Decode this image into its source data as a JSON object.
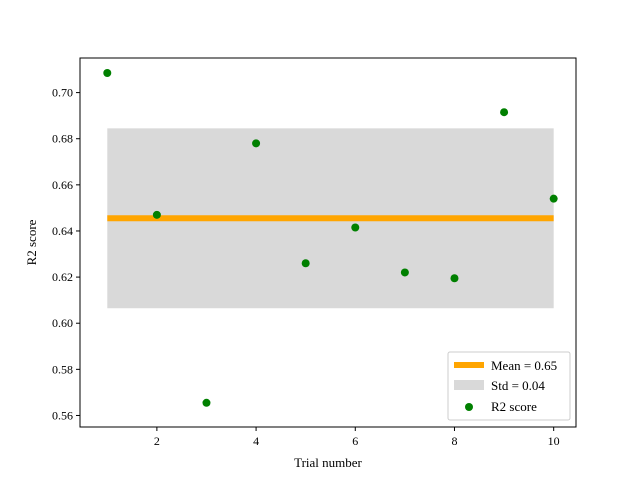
{
  "chart_data": {
    "type": "scatter",
    "xlabel": "Trial number",
    "ylabel": "R2 score",
    "xlim": [
      0.45,
      10.45
    ],
    "ylim": [
      0.555,
      0.715
    ],
    "xticks": [
      2,
      4,
      6,
      8,
      10
    ],
    "yticks": [
      0.56,
      0.58,
      0.6,
      0.62,
      0.64,
      0.66,
      0.68,
      0.7
    ],
    "ytick_labels": [
      "0.56",
      "0.58",
      "0.60",
      "0.62",
      "0.64",
      "0.66",
      "0.68",
      "0.70"
    ],
    "xtick_labels": [
      "2",
      "4",
      "6",
      "8",
      "10"
    ],
    "grid": false,
    "legend_position": "lower-right",
    "series": [
      {
        "name": "R2 score",
        "kind": "points",
        "color": "#008000",
        "x": [
          1,
          2,
          3,
          4,
          5,
          6,
          7,
          8,
          9,
          10
        ],
        "y": [
          0.7085,
          0.647,
          0.5655,
          0.678,
          0.626,
          0.6415,
          0.622,
          0.6195,
          0.6915,
          0.654
        ]
      },
      {
        "name": "Mean = 0.65",
        "kind": "hline",
        "color": "#FFA500",
        "y": 0.6455,
        "x_range": [
          1,
          10
        ]
      },
      {
        "name": "Std = 0.04",
        "kind": "band",
        "color": "#D9D9D9",
        "y_range": [
          0.6065,
          0.6845
        ],
        "x_range": [
          1,
          10
        ]
      }
    ]
  }
}
